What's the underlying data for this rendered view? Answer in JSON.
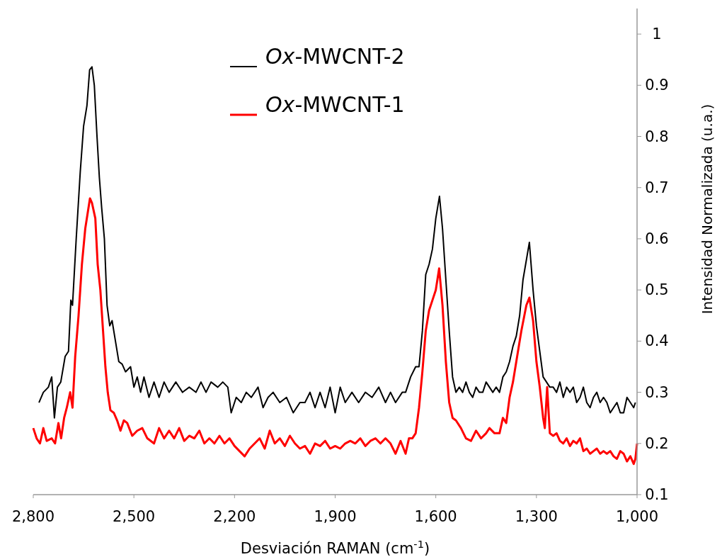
{
  "chart_data": {
    "type": "line",
    "xlabel": "Desviación RAMAN (cm$^{-1}$)",
    "ylabel": "Intensidad Normalizada (u.a.)",
    "xlim": [
      2800,
      1000
    ],
    "xticks": [
      {
        "value": 2800,
        "label": "2,800"
      },
      {
        "value": 2500,
        "label": "2,500"
      },
      {
        "value": 2200,
        "label": "2,200"
      },
      {
        "value": 1900,
        "label": "1,900"
      },
      {
        "value": 1600,
        "label": "1,600"
      },
      {
        "value": 1300,
        "label": "1,300"
      },
      {
        "value": 1000,
        "label": "1,000"
      }
    ],
    "ylim": [
      0.1,
      1.05
    ],
    "yticks": [
      0.1,
      0.2,
      0.3,
      0.4,
      0.5,
      0.6,
      0.7,
      0.8,
      0.9,
      1
    ],
    "grid": false,
    "legend": "top left",
    "marker": "none",
    "line_style": "solid",
    "series": [
      {
        "name": "Ox-MWCNT-2",
        "color": "#000000",
        "x": [
          2783,
          2770,
          2755,
          2745,
          2737,
          2728,
          2718,
          2705,
          2695,
          2688,
          2683,
          2672,
          2660,
          2650,
          2640,
          2632,
          2625,
          2618,
          2610,
          2603,
          2596,
          2588,
          2580,
          2572,
          2565,
          2555,
          2545,
          2535,
          2525,
          2510,
          2500,
          2490,
          2480,
          2470,
          2455,
          2440,
          2425,
          2410,
          2395,
          2375,
          2355,
          2335,
          2315,
          2300,
          2285,
          2270,
          2250,
          2235,
          2220,
          2210,
          2195,
          2180,
          2165,
          2150,
          2130,
          2115,
          2100,
          2085,
          2065,
          2045,
          2025,
          2005,
          1990,
          1975,
          1960,
          1945,
          1930,
          1915,
          1900,
          1885,
          1870,
          1850,
          1830,
          1810,
          1790,
          1770,
          1750,
          1735,
          1720,
          1700,
          1690,
          1675,
          1660,
          1650,
          1640,
          1630,
          1620,
          1610,
          1600,
          1589,
          1580,
          1570,
          1560,
          1550,
          1540,
          1530,
          1520,
          1510,
          1500,
          1490,
          1480,
          1470,
          1460,
          1450,
          1440,
          1430,
          1420,
          1410,
          1400,
          1390,
          1380,
          1370,
          1360,
          1350,
          1340,
          1321,
          1310,
          1300,
          1290,
          1280,
          1270,
          1260,
          1250,
          1240,
          1230,
          1220,
          1210,
          1200,
          1190,
          1180,
          1170,
          1160,
          1150,
          1140,
          1130,
          1120,
          1110,
          1100,
          1090,
          1080,
          1070,
          1060,
          1050,
          1040,
          1030,
          1020,
          1010,
          1005
        ],
        "values": [
          0.28,
          0.3,
          0.31,
          0.33,
          0.25,
          0.31,
          0.32,
          0.37,
          0.38,
          0.48,
          0.47,
          0.6,
          0.73,
          0.82,
          0.86,
          0.93,
          0.936,
          0.9,
          0.8,
          0.72,
          0.66,
          0.6,
          0.47,
          0.43,
          0.44,
          0.4,
          0.36,
          0.355,
          0.34,
          0.35,
          0.31,
          0.33,
          0.3,
          0.33,
          0.29,
          0.32,
          0.29,
          0.32,
          0.3,
          0.32,
          0.3,
          0.31,
          0.3,
          0.32,
          0.3,
          0.32,
          0.31,
          0.32,
          0.31,
          0.26,
          0.29,
          0.28,
          0.3,
          0.29,
          0.31,
          0.27,
          0.29,
          0.3,
          0.28,
          0.29,
          0.26,
          0.28,
          0.28,
          0.3,
          0.27,
          0.3,
          0.27,
          0.31,
          0.26,
          0.31,
          0.28,
          0.3,
          0.28,
          0.3,
          0.29,
          0.31,
          0.28,
          0.3,
          0.28,
          0.3,
          0.3,
          0.33,
          0.35,
          0.35,
          0.42,
          0.53,
          0.55,
          0.58,
          0.64,
          0.683,
          0.62,
          0.52,
          0.42,
          0.33,
          0.3,
          0.31,
          0.3,
          0.32,
          0.3,
          0.29,
          0.31,
          0.3,
          0.3,
          0.32,
          0.31,
          0.3,
          0.31,
          0.3,
          0.33,
          0.34,
          0.36,
          0.39,
          0.41,
          0.45,
          0.52,
          0.593,
          0.5,
          0.43,
          0.38,
          0.33,
          0.32,
          0.31,
          0.31,
          0.3,
          0.32,
          0.29,
          0.31,
          0.3,
          0.31,
          0.28,
          0.29,
          0.31,
          0.28,
          0.27,
          0.29,
          0.3,
          0.28,
          0.29,
          0.28,
          0.26,
          0.27,
          0.28,
          0.26,
          0.26,
          0.29,
          0.28,
          0.27,
          0.28
        ]
      },
      {
        "name": "Ox-MWCNT-1",
        "color": "#ff0000",
        "x": [
          2800,
          2790,
          2780,
          2770,
          2760,
          2745,
          2735,
          2725,
          2717,
          2708,
          2700,
          2690,
          2683,
          2675,
          2665,
          2655,
          2645,
          2631,
          2625,
          2615,
          2608,
          2600,
          2592,
          2585,
          2578,
          2570,
          2560,
          2550,
          2540,
          2530,
          2520,
          2505,
          2490,
          2475,
          2460,
          2440,
          2425,
          2410,
          2395,
          2380,
          2365,
          2350,
          2335,
          2320,
          2305,
          2290,
          2275,
          2260,
          2245,
          2230,
          2215,
          2200,
          2185,
          2170,
          2155,
          2140,
          2125,
          2110,
          2095,
          2080,
          2065,
          2050,
          2035,
          2020,
          2005,
          1990,
          1975,
          1960,
          1945,
          1930,
          1915,
          1900,
          1885,
          1870,
          1855,
          1840,
          1825,
          1810,
          1795,
          1780,
          1765,
          1750,
          1735,
          1720,
          1705,
          1690,
          1680,
          1670,
          1660,
          1650,
          1640,
          1630,
          1620,
          1610,
          1600,
          1590,
          1580,
          1570,
          1560,
          1550,
          1540,
          1525,
          1510,
          1495,
          1480,
          1465,
          1450,
          1440,
          1425,
          1410,
          1400,
          1390,
          1380,
          1370,
          1360,
          1345,
          1330,
          1321,
          1310,
          1300,
          1290,
          1280,
          1275,
          1268,
          1260,
          1250,
          1240,
          1230,
          1220,
          1210,
          1200,
          1190,
          1180,
          1170,
          1160,
          1150,
          1140,
          1130,
          1120,
          1110,
          1100,
          1090,
          1080,
          1070,
          1060,
          1050,
          1040,
          1030,
          1020,
          1010,
          1005,
          1000
        ],
        "values": [
          0.23,
          0.21,
          0.2,
          0.23,
          0.205,
          0.21,
          0.2,
          0.24,
          0.21,
          0.25,
          0.27,
          0.3,
          0.27,
          0.37,
          0.45,
          0.55,
          0.62,
          0.679,
          0.67,
          0.64,
          0.55,
          0.5,
          0.42,
          0.35,
          0.3,
          0.265,
          0.26,
          0.245,
          0.225,
          0.245,
          0.24,
          0.215,
          0.225,
          0.23,
          0.21,
          0.2,
          0.23,
          0.21,
          0.225,
          0.21,
          0.23,
          0.205,
          0.215,
          0.21,
          0.225,
          0.2,
          0.21,
          0.2,
          0.215,
          0.2,
          0.21,
          0.195,
          0.185,
          0.175,
          0.19,
          0.2,
          0.21,
          0.19,
          0.225,
          0.2,
          0.21,
          0.195,
          0.215,
          0.2,
          0.19,
          0.195,
          0.18,
          0.2,
          0.195,
          0.205,
          0.19,
          0.195,
          0.19,
          0.2,
          0.205,
          0.2,
          0.21,
          0.195,
          0.205,
          0.21,
          0.2,
          0.21,
          0.2,
          0.18,
          0.205,
          0.18,
          0.21,
          0.21,
          0.22,
          0.27,
          0.34,
          0.42,
          0.46,
          0.48,
          0.5,
          0.542,
          0.47,
          0.36,
          0.28,
          0.25,
          0.245,
          0.23,
          0.21,
          0.205,
          0.225,
          0.21,
          0.22,
          0.23,
          0.22,
          0.22,
          0.25,
          0.24,
          0.29,
          0.32,
          0.36,
          0.42,
          0.47,
          0.485,
          0.44,
          0.36,
          0.31,
          0.25,
          0.23,
          0.31,
          0.22,
          0.215,
          0.22,
          0.205,
          0.2,
          0.21,
          0.195,
          0.205,
          0.2,
          0.21,
          0.185,
          0.19,
          0.18,
          0.185,
          0.19,
          0.18,
          0.185,
          0.18,
          0.185,
          0.175,
          0.17,
          0.185,
          0.18,
          0.165,
          0.175,
          0.16,
          0.17,
          0.2
        ]
      }
    ]
  }
}
